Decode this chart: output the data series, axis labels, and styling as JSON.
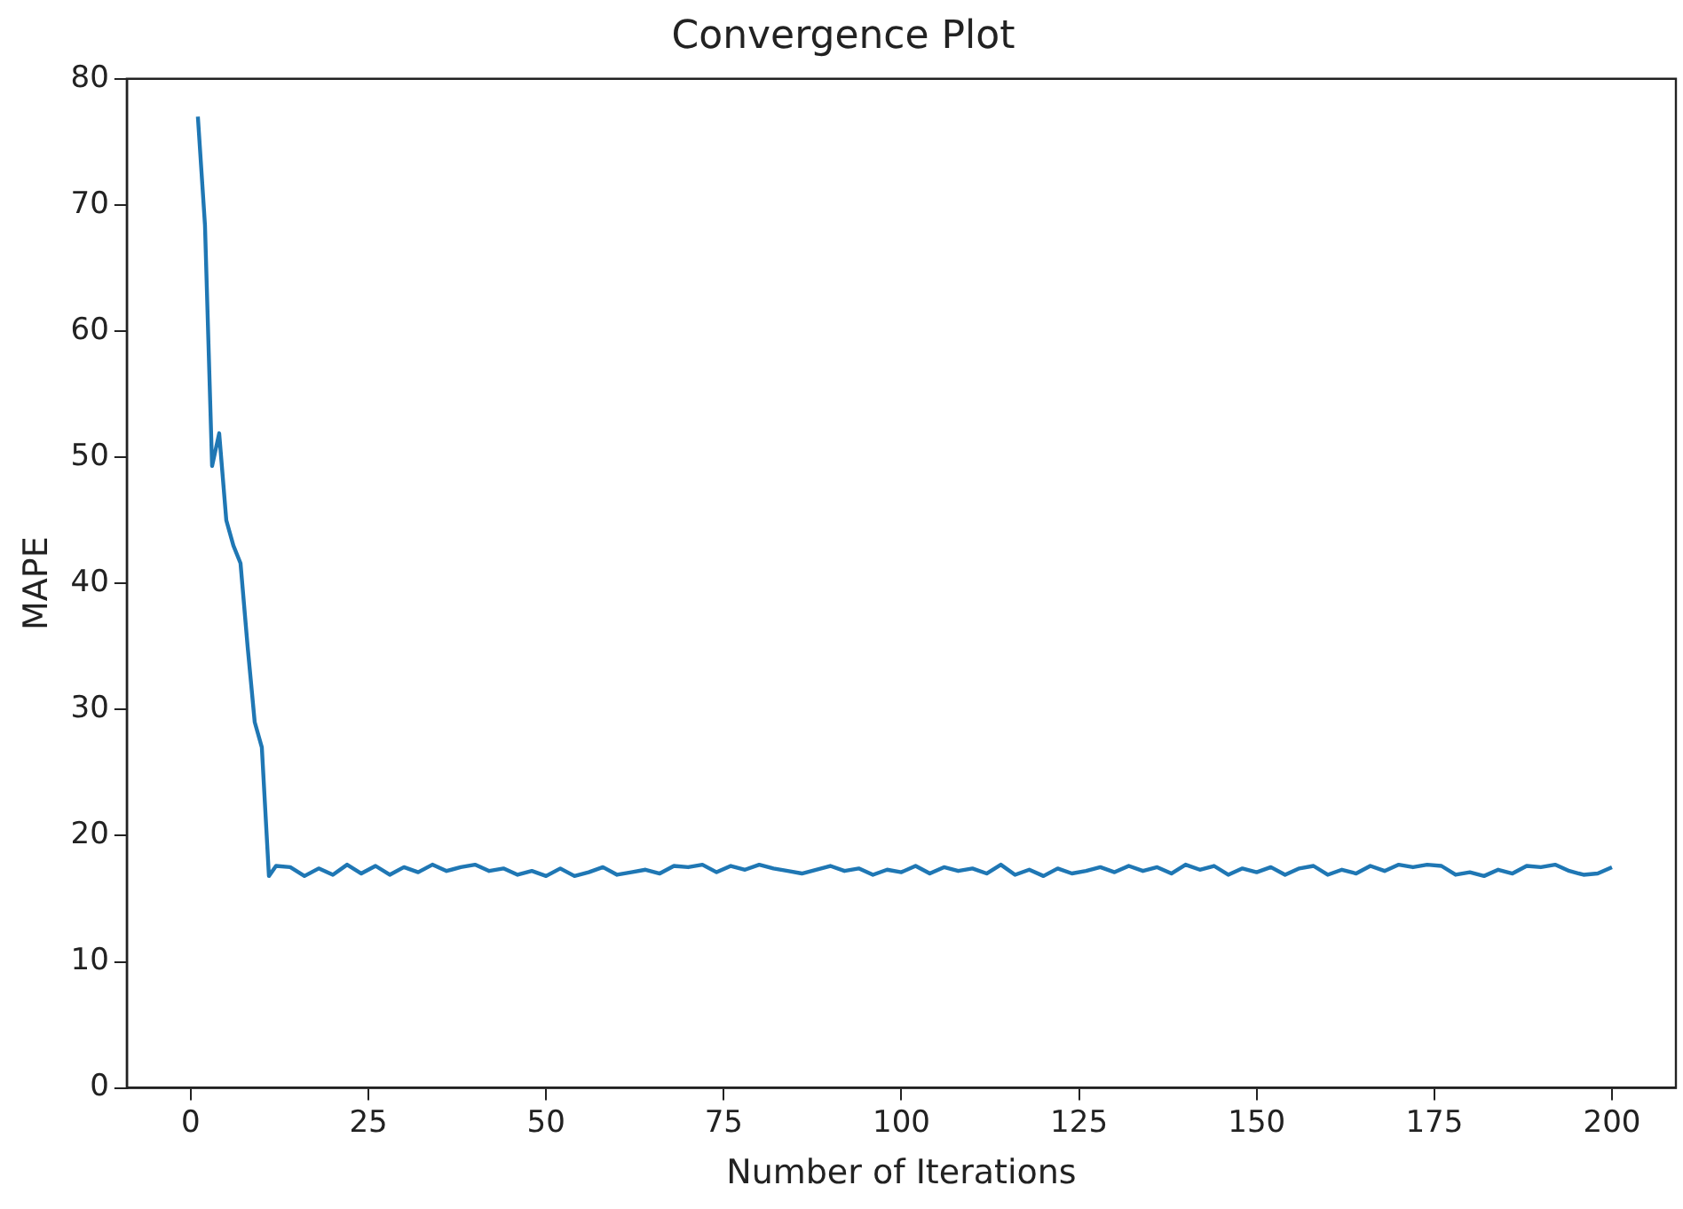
{
  "chart_data": {
    "type": "line",
    "title": "Convergence Plot",
    "xlabel": "Number of Iterations",
    "ylabel": "MAPE",
    "xlim": [
      -9,
      209
    ],
    "xticks": [
      0,
      25,
      50,
      75,
      100,
      125,
      150,
      175,
      200
    ],
    "ylim": [
      0,
      80
    ],
    "yticks": [
      0,
      10,
      20,
      30,
      40,
      50,
      60,
      70,
      80
    ],
    "grid": false,
    "legend": false,
    "marker": "none",
    "line_style": "solid",
    "series": [
      {
        "color": "#1f77b4",
        "x": [
          1,
          2,
          3,
          4,
          5,
          6,
          7,
          8,
          9,
          10,
          11,
          12,
          14,
          16,
          18,
          20,
          22,
          24,
          26,
          28,
          30,
          32,
          34,
          36,
          38,
          40,
          42,
          44,
          46,
          48,
          50,
          52,
          54,
          56,
          58,
          60,
          62,
          64,
          66,
          68,
          70,
          72,
          74,
          76,
          78,
          80,
          82,
          84,
          86,
          88,
          90,
          92,
          94,
          96,
          98,
          100,
          102,
          104,
          106,
          108,
          110,
          112,
          114,
          116,
          118,
          120,
          122,
          124,
          126,
          128,
          130,
          132,
          134,
          136,
          138,
          140,
          142,
          144,
          146,
          148,
          150,
          152,
          154,
          156,
          158,
          160,
          162,
          164,
          166,
          168,
          170,
          172,
          174,
          176,
          178,
          180,
          182,
          184,
          186,
          188,
          190,
          192,
          194,
          196,
          198,
          200
        ],
        "values": [
          77,
          68.4,
          49.3,
          51.9,
          45,
          43,
          41.6,
          35,
          29,
          27,
          16.8,
          17.6,
          17.5,
          16.8,
          17.4,
          16.9,
          17.7,
          17.0,
          17.6,
          16.9,
          17.5,
          17.1,
          17.7,
          17.2,
          17.5,
          17.7,
          17.2,
          17.4,
          16.9,
          17.2,
          16.8,
          17.4,
          16.8,
          17.1,
          17.5,
          16.9,
          17.1,
          17.3,
          17.0,
          17.6,
          17.5,
          17.7,
          17.1,
          17.6,
          17.3,
          17.7,
          17.4,
          17.2,
          17.0,
          17.3,
          17.6,
          17.2,
          17.4,
          16.9,
          17.3,
          17.1,
          17.6,
          17.0,
          17.5,
          17.2,
          17.4,
          17.0,
          17.7,
          16.9,
          17.3,
          16.8,
          17.4,
          17.0,
          17.2,
          17.5,
          17.1,
          17.6,
          17.2,
          17.5,
          17.0,
          17.7,
          17.3,
          17.6,
          16.9,
          17.4,
          17.1,
          17.5,
          16.9,
          17.4,
          17.6,
          16.9,
          17.3,
          17.0,
          17.6,
          17.2,
          17.7,
          17.5,
          17.7,
          17.6,
          16.9,
          17.1,
          16.8,
          17.3,
          17.0,
          17.6,
          17.5,
          17.7,
          17.2,
          16.9,
          17.0,
          17.5
        ]
      }
    ]
  }
}
